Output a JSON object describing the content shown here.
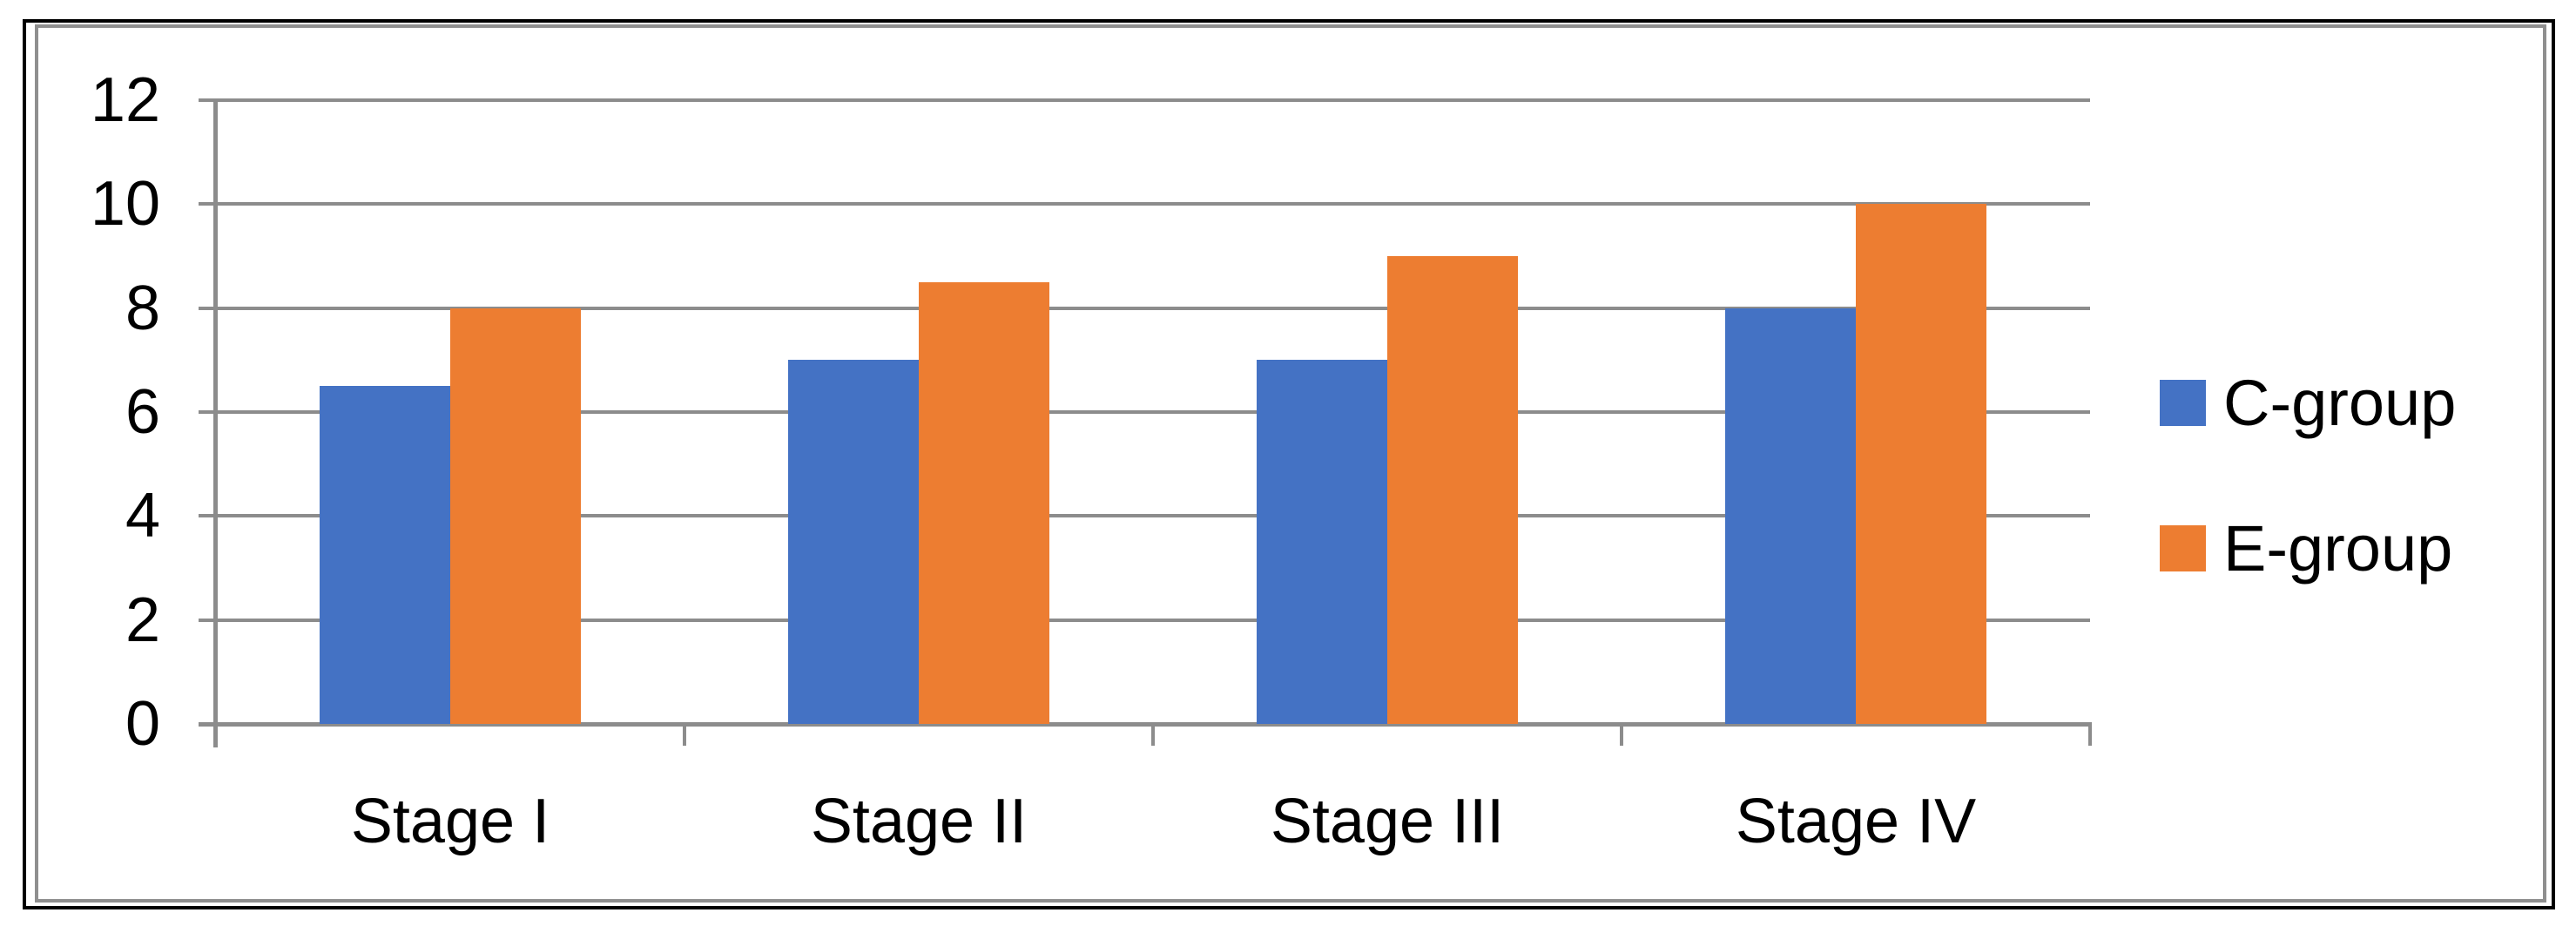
{
  "chart_data": {
    "type": "bar",
    "title": "",
    "xlabel": "",
    "ylabel": "",
    "categories": [
      "Stage I",
      "Stage II",
      "Stage III",
      "Stage IV"
    ],
    "series": [
      {
        "name": "C-group",
        "color": "#4472C4",
        "values": [
          6.5,
          7,
          7,
          8
        ]
      },
      {
        "name": "E-group",
        "color": "#ED7D31",
        "values": [
          8,
          8.5,
          9,
          10
        ]
      }
    ],
    "ylim": [
      0,
      12
    ],
    "yticks": [
      0,
      2,
      4,
      6,
      8,
      10,
      12
    ],
    "grid": true,
    "legend_position": "right"
  },
  "colors": {
    "grid": "#8C8C8C",
    "axis": "#8C8C8C",
    "chart_border": "#8F8F8F",
    "outer_frame": "#000000",
    "text": "#000000",
    "background": "#FFFFFF"
  }
}
